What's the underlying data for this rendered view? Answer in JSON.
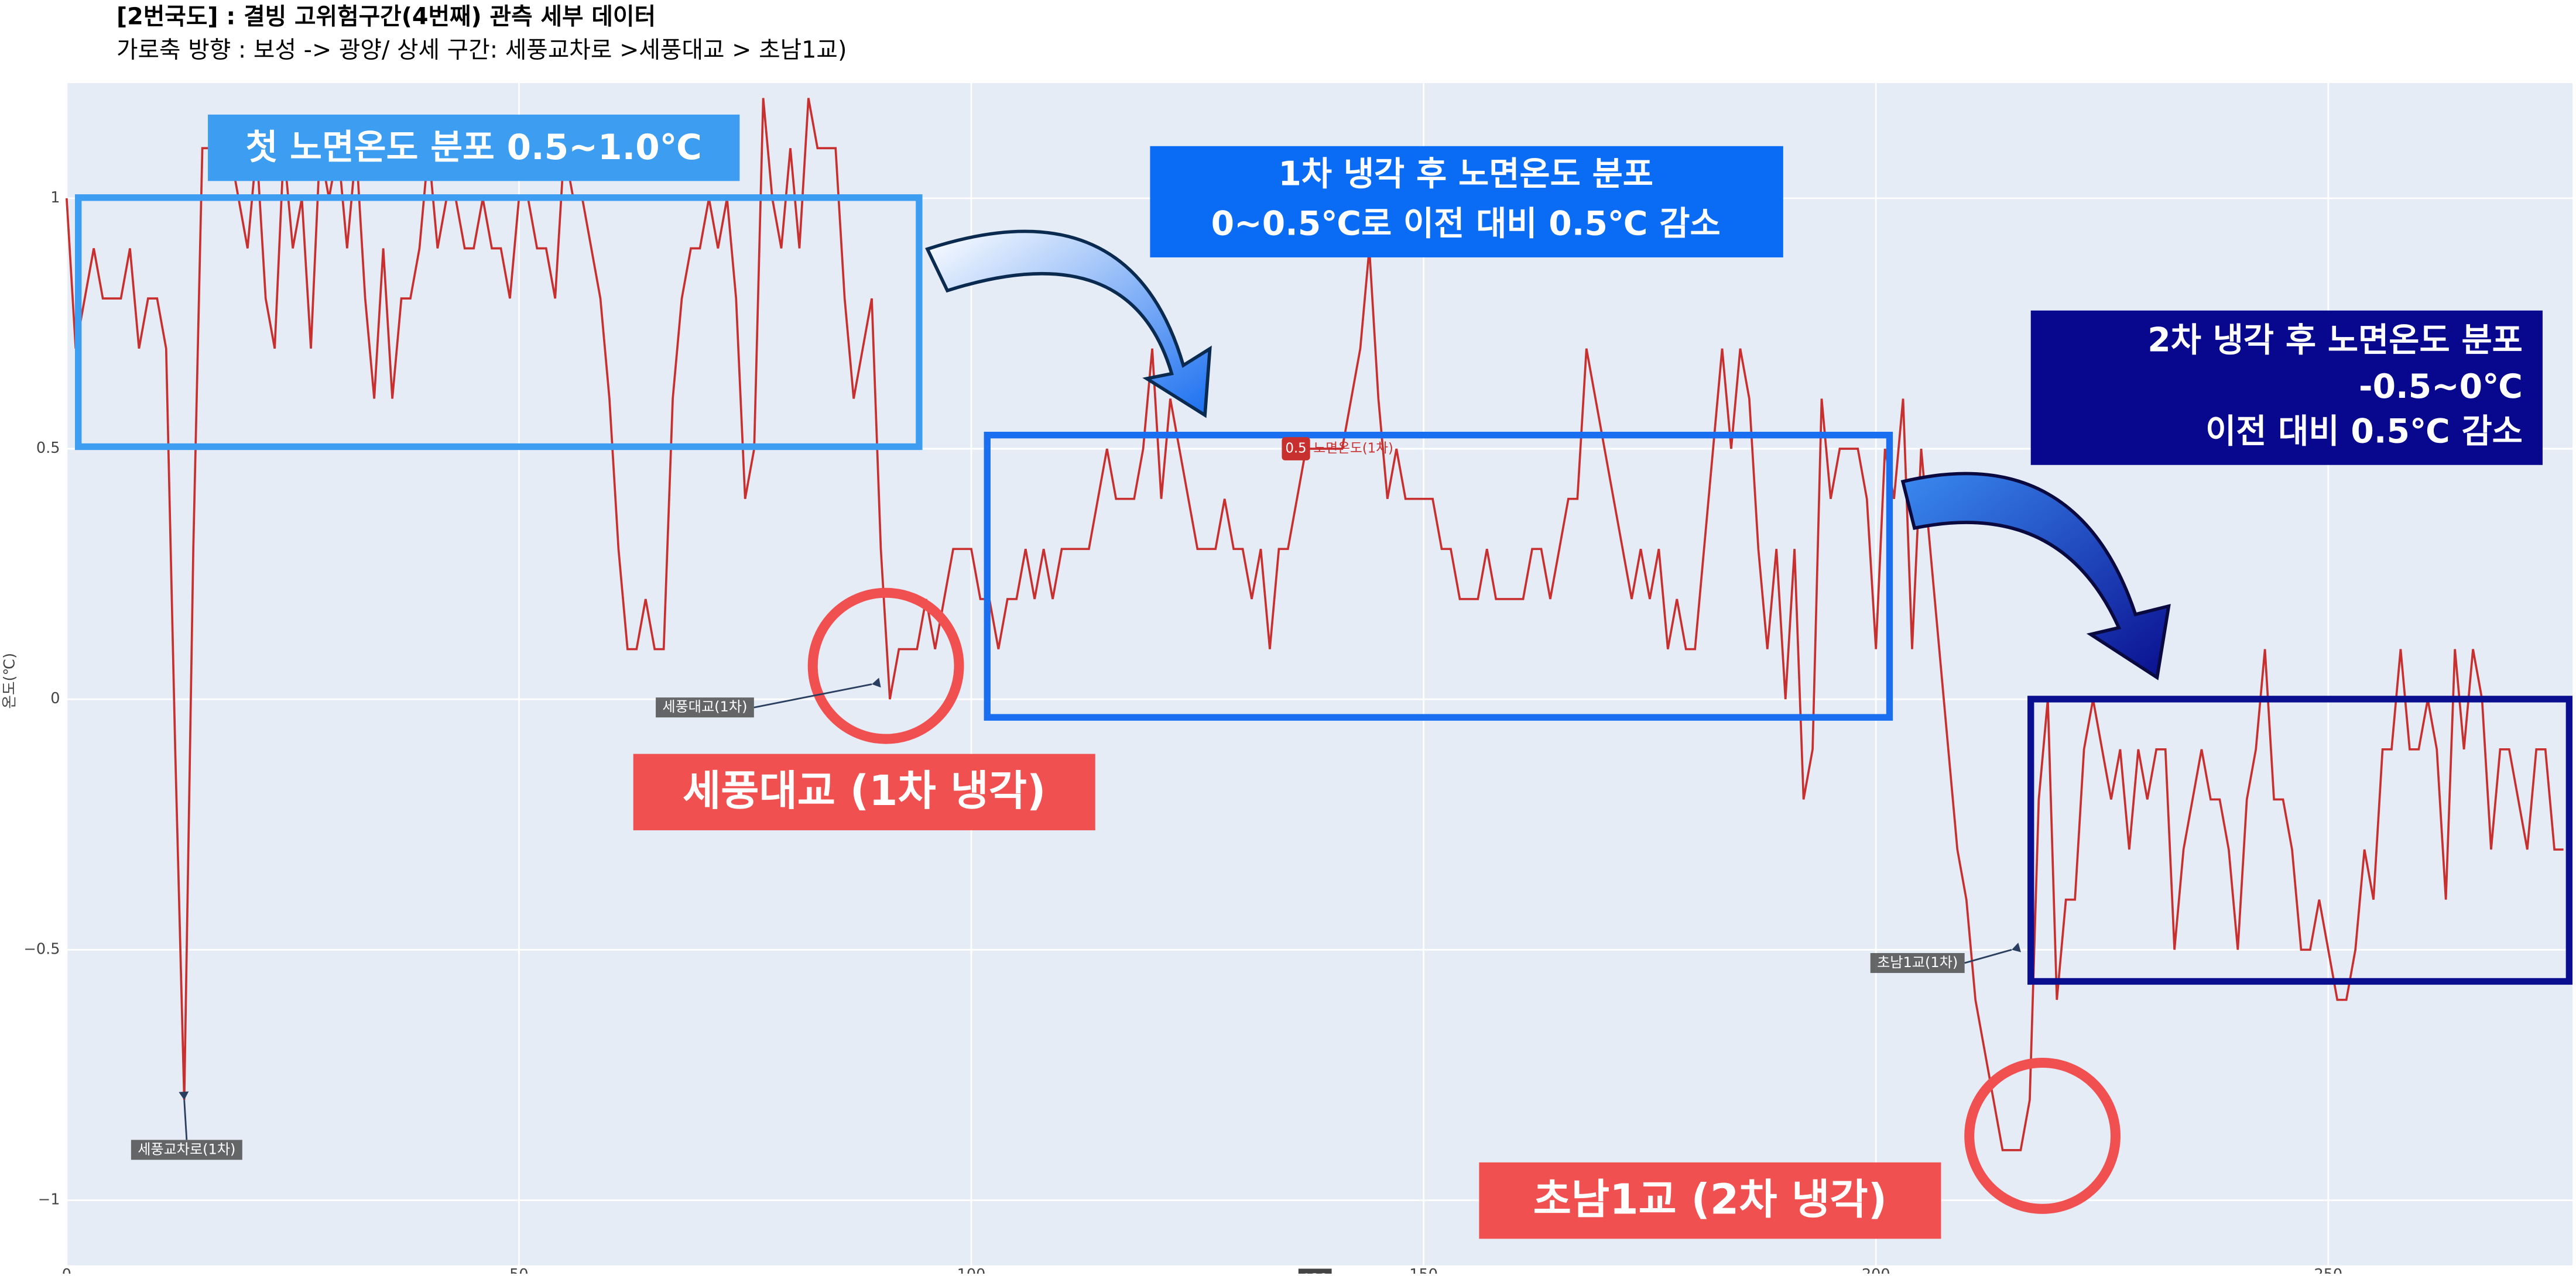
{
  "chart_data": {
    "type": "line",
    "title": "[2번국도] : 결빙 고위험구간(4번째) 관측 세부 데이터",
    "subtitle": "가로축 방향 : 보성 -> 광양/ 상세 구간: 세풍교차로 >세풍대교 > 초남1교)",
    "y_label": "온도(℃)",
    "x": [
      0,
      1,
      2,
      3,
      4,
      5,
      6,
      7,
      8,
      9,
      10,
      11,
      12,
      13,
      14,
      15,
      16,
      17,
      18,
      19,
      20,
      21,
      22,
      23,
      24,
      25,
      26,
      27,
      28,
      29,
      30,
      31,
      32,
      33,
      34,
      35,
      36,
      37,
      38,
      39,
      40,
      41,
      42,
      43,
      44,
      45,
      46,
      47,
      48,
      49,
      50,
      51,
      52,
      53,
      54,
      55,
      56,
      57,
      58,
      59,
      60,
      61,
      62,
      63,
      64,
      65,
      66,
      67,
      68,
      69,
      70,
      71,
      72,
      73,
      74,
      75,
      76,
      77,
      78,
      79,
      80,
      81,
      82,
      83,
      84,
      85,
      86,
      87,
      88,
      89,
      90,
      91,
      92,
      93,
      94,
      95,
      96,
      97,
      98,
      99,
      100,
      101,
      102,
      103,
      104,
      105,
      106,
      107,
      108,
      109,
      110,
      111,
      112,
      113,
      114,
      115,
      116,
      117,
      118,
      119,
      120,
      121,
      122,
      123,
      124,
      125,
      126,
      127,
      128,
      129,
      130,
      131,
      132,
      133,
      134,
      135,
      136,
      137,
      138,
      139,
      140,
      141,
      142,
      143,
      144,
      145,
      146,
      147,
      148,
      149,
      150,
      151,
      152,
      153,
      154,
      155,
      156,
      157,
      158,
      159,
      160,
      161,
      162,
      163,
      164,
      165,
      166,
      167,
      168,
      169,
      170,
      171,
      172,
      173,
      174,
      175,
      176,
      177,
      178,
      179,
      180,
      181,
      182,
      183,
      184,
      185,
      186,
      187,
      188,
      189,
      190,
      191,
      192,
      193,
      194,
      195,
      196,
      197,
      198,
      199,
      200,
      201,
      202,
      203,
      204,
      205,
      206,
      207,
      208,
      209,
      210,
      211,
      212,
      213,
      214,
      215,
      216,
      217,
      218,
      219,
      220,
      221,
      222,
      223,
      224,
      225,
      226,
      227,
      228,
      229,
      230,
      231,
      232,
      233,
      234,
      235,
      236,
      237,
      238,
      239,
      240,
      241,
      242,
      243,
      244,
      245,
      246,
      247,
      248,
      249,
      250,
      251,
      252,
      253,
      254,
      255,
      256,
      257,
      258,
      259,
      260,
      261,
      262,
      263,
      264,
      265,
      266,
      267,
      268,
      269,
      270,
      271,
      272,
      273,
      274,
      275,
      276
    ],
    "series": [
      {
        "name": "노면온도(1차)",
        "color": "#c8302f",
        "values": [
          1.0,
          0.7,
          0.8,
          0.9,
          0.8,
          0.8,
          0.8,
          0.9,
          0.7,
          0.8,
          0.8,
          0.7,
          -0.1,
          -0.8,
          0.3,
          1.1,
          1.1,
          1.1,
          1.1,
          1.0,
          0.9,
          1.1,
          0.8,
          0.7,
          1.1,
          0.9,
          1.0,
          0.7,
          1.1,
          1.0,
          1.1,
          0.9,
          1.1,
          0.8,
          0.6,
          0.9,
          0.6,
          0.8,
          0.8,
          0.9,
          1.1,
          0.9,
          1.0,
          1.0,
          0.9,
          0.9,
          1.0,
          0.9,
          0.9,
          0.8,
          1.0,
          1.0,
          0.9,
          0.9,
          0.8,
          1.1,
          1.0,
          1.0,
          0.9,
          0.8,
          0.6,
          0.3,
          0.1,
          0.1,
          0.2,
          0.1,
          0.1,
          0.6,
          0.8,
          0.9,
          0.9,
          1.0,
          0.9,
          1.0,
          0.8,
          0.4,
          0.5,
          1.2,
          1.0,
          0.9,
          1.1,
          0.9,
          1.2,
          1.1,
          1.1,
          1.1,
          0.8,
          0.6,
          0.7,
          0.8,
          0.3,
          0.0,
          0.1,
          0.1,
          0.1,
          0.2,
          0.1,
          0.2,
          0.3,
          0.3,
          0.3,
          0.2,
          0.2,
          0.1,
          0.2,
          0.2,
          0.3,
          0.2,
          0.3,
          0.2,
          0.3,
          0.3,
          0.3,
          0.3,
          0.4,
          0.5,
          0.4,
          0.4,
          0.4,
          0.5,
          0.7,
          0.4,
          0.6,
          0.5,
          0.4,
          0.3,
          0.3,
          0.3,
          0.4,
          0.3,
          0.3,
          0.2,
          0.3,
          0.1,
          0.3,
          0.3,
          0.4,
          0.5,
          0.5,
          0.5,
          0.5,
          0.5,
          0.6,
          0.7,
          0.9,
          0.6,
          0.4,
          0.5,
          0.4,
          0.4,
          0.4,
          0.4,
          0.3,
          0.3,
          0.2,
          0.2,
          0.2,
          0.3,
          0.2,
          0.2,
          0.2,
          0.2,
          0.3,
          0.3,
          0.2,
          0.3,
          0.4,
          0.4,
          0.7,
          0.6,
          0.5,
          0.4,
          0.3,
          0.2,
          0.3,
          0.2,
          0.3,
          0.1,
          0.2,
          0.1,
          0.1,
          0.3,
          0.5,
          0.7,
          0.5,
          0.7,
          0.6,
          0.3,
          0.1,
          0.3,
          0.0,
          0.3,
          -0.2,
          -0.1,
          0.6,
          0.4,
          0.5,
          0.5,
          0.5,
          0.4,
          0.1,
          0.5,
          0.4,
          0.6,
          0.1,
          0.5,
          0.3,
          0.1,
          -0.1,
          -0.3,
          -0.4,
          -0.6,
          -0.7,
          -0.8,
          -0.9,
          -0.9,
          -0.9,
          -0.8,
          -0.2,
          0.0,
          -0.6,
          -0.4,
          -0.4,
          -0.1,
          0.0,
          -0.1,
          -0.2,
          -0.1,
          -0.3,
          -0.1,
          -0.2,
          -0.1,
          -0.1,
          -0.5,
          -0.3,
          -0.2,
          -0.1,
          -0.2,
          -0.2,
          -0.3,
          -0.5,
          -0.2,
          -0.1,
          0.1,
          -0.2,
          -0.2,
          -0.3,
          -0.5,
          -0.5,
          -0.4,
          -0.5,
          -0.6,
          -0.6,
          -0.5,
          -0.3,
          -0.4,
          -0.1,
          -0.1,
          0.1,
          -0.1,
          -0.1,
          0.0,
          -0.1,
          -0.4,
          0.1,
          -0.1,
          0.1,
          0.0,
          -0.3,
          -0.1,
          -0.1,
          -0.2,
          -0.3,
          -0.1,
          -0.1,
          -0.3,
          -0.3
        ]
      }
    ],
    "xlim": [
      0,
      277
    ],
    "ylim": [
      -1.13,
      1.23
    ],
    "xticks": [
      0,
      50,
      100,
      150,
      200,
      250
    ],
    "yticks": [
      {
        "value": -1,
        "label": "−1"
      },
      {
        "value": -0.5,
        "label": "−0.5"
      },
      0,
      0.5,
      1
    ],
    "grid": true,
    "annotations": [
      {
        "text": "세풍교차로(1차)",
        "x": 13,
        "y": -0.8
      },
      {
        "text": "세풍대교(1차)",
        "x": 89,
        "y": 0.03
      },
      {
        "text": "초남1교(1차)",
        "x": 215,
        "y": -0.5
      }
    ],
    "hover": {
      "x": 138,
      "y": 0.5
    },
    "callouts": [
      "첫 노면온도 분포 0.5~1.0℃",
      "1차 냉각 후 노면온도 분포",
      "0~0.5℃로 이전 대비 0.5℃ 감소",
      "2차 냉각 후 노면온도 분포",
      "-0.5~0℃",
      "이전 대비 0.5℃ 감소",
      "세풍대교 (1차 냉각)",
      "초남1교 (2차 냉각)"
    ]
  }
}
